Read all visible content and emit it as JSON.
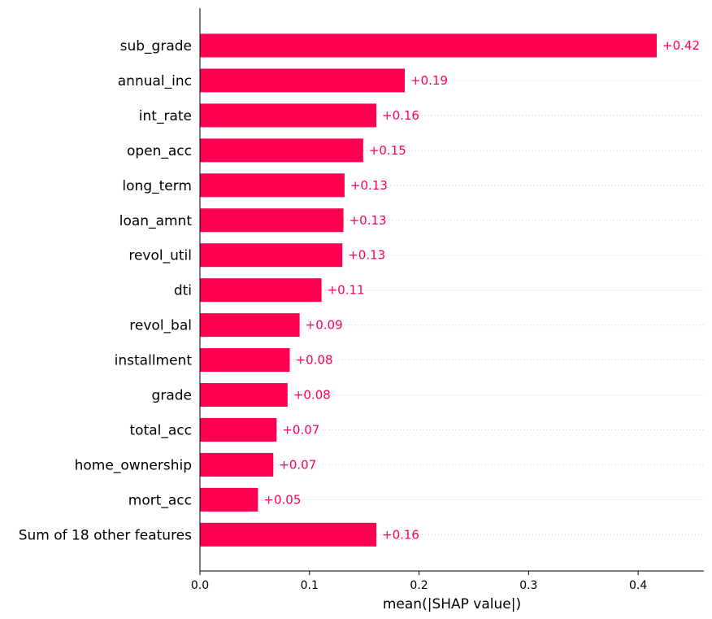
{
  "chart_data": {
    "type": "bar",
    "orientation": "horizontal",
    "categories": [
      "sub_grade",
      "annual_inc",
      "int_rate",
      "open_acc",
      "long_term",
      "loan_amnt",
      "revol_util",
      "dti",
      "revol_bal",
      "installment",
      "grade",
      "total_acc",
      "home_ownership",
      "mort_acc",
      "Sum of 18 other features"
    ],
    "values": [
      0.417,
      0.187,
      0.161,
      0.149,
      0.132,
      0.131,
      0.13,
      0.111,
      0.091,
      0.082,
      0.08,
      0.07,
      0.067,
      0.053,
      0.161
    ],
    "value_labels": [
      "+0.42",
      "+0.19",
      "+0.16",
      "+0.15",
      "+0.13",
      "+0.13",
      "+0.13",
      "+0.11",
      "+0.09",
      "+0.08",
      "+0.08",
      "+0.07",
      "+0.07",
      "+0.05",
      "+0.16"
    ],
    "xlabel": "mean(|SHAP value|)",
    "xlim": [
      0,
      0.46
    ],
    "xticks": [
      0.0,
      0.1,
      0.2,
      0.3,
      0.4
    ],
    "xtick_labels": [
      "0.0",
      "0.1",
      "0.2",
      "0.3",
      "0.4"
    ],
    "bar_color": "#ff0051",
    "label_color": "#ff0051",
    "grid": false
  }
}
